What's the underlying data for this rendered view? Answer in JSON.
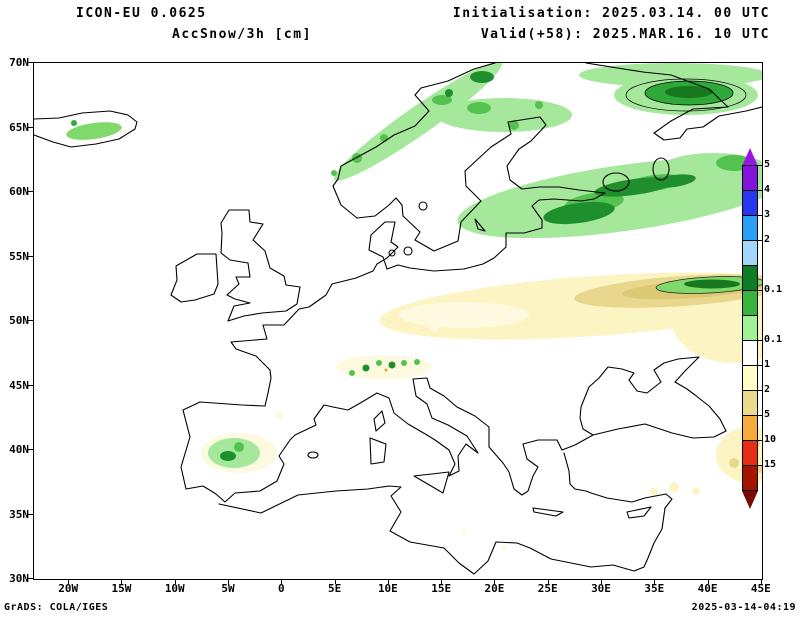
{
  "header": {
    "model": "ICON-EU 0.0625",
    "variable": "AccSnow/3h [cm]",
    "initialisation": "Initialisation: 2025.03.14. 00 UTC",
    "valid": "Valid(+58): 2025.MAR.16. 10 UTC"
  },
  "axes": {
    "lat_labels": [
      "70N",
      "65N",
      "60N",
      "55N",
      "50N",
      "45N",
      "40N",
      "35N",
      "30N"
    ],
    "lon_labels": [
      "20W",
      "15W",
      "10W",
      "5W",
      "0",
      "5E",
      "10E",
      "15E",
      "20E",
      "25E",
      "30E",
      "35E",
      "40E",
      "45E"
    ]
  },
  "colorbar": {
    "arrow_top_color": "#9b14e6",
    "arrow_bottom_color": "#7d0a00",
    "segments": [
      {
        "color": "#8214dc",
        "label": "5"
      },
      {
        "color": "#2837f0",
        "label": "4"
      },
      {
        "color": "#28a0f5",
        "label": "3"
      },
      {
        "color": "#a0d7fa",
        "label": "2"
      },
      {
        "color": "#0f7d23",
        "label": ""
      },
      {
        "color": "#37b43c",
        "label": "0.1"
      },
      {
        "color": "#a0f096",
        "label": ""
      },
      {
        "color": "#ffffff",
        "label": "0.1"
      },
      {
        "color": "#ffffc8",
        "label": "1"
      },
      {
        "color": "#ebdc8c",
        "label": "2"
      },
      {
        "color": "#f5aa3c",
        "label": "5"
      },
      {
        "color": "#e62e14",
        "label": "10"
      },
      {
        "color": "#a51400",
        "label": "15"
      }
    ]
  },
  "shading_colors": {
    "light_snow": "#a5e89b",
    "moderate_snow": "#54c24e",
    "heavy_snow": "#1f8f2d",
    "light_warm": "#fcf5c3",
    "moderate_warm": "#e8d88e"
  },
  "footer": {
    "left": "GrADS: COLA/IGES",
    "right": "2025-03-14-04:19"
  }
}
